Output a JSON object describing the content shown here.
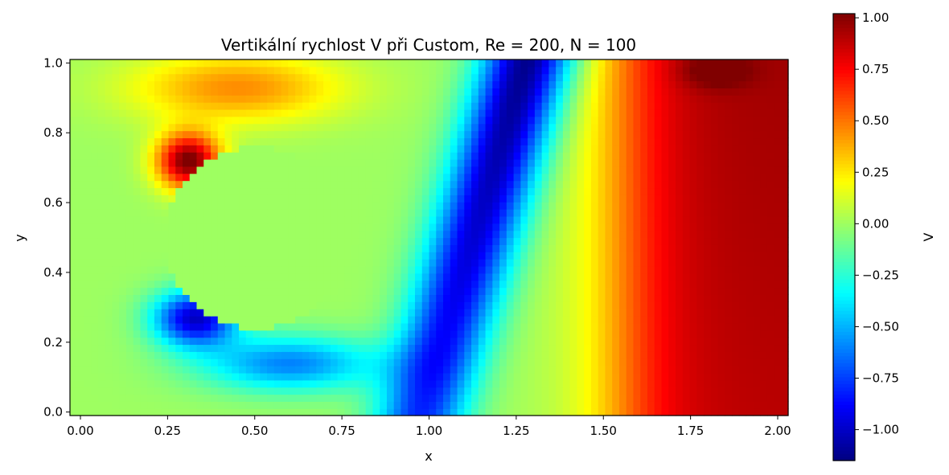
{
  "chart_data": {
    "type": "heatmap",
    "title": "Vertikální rychlost V při Custom, Re = 200, N = 100",
    "xlabel": "x",
    "ylabel": "y",
    "xlim": [
      -0.03,
      2.03
    ],
    "ylim": [
      -0.01,
      1.01
    ],
    "x_ticks": [
      0.0,
      0.25,
      0.5,
      0.75,
      1.0,
      1.25,
      1.5,
      1.75,
      2.0
    ],
    "x_tick_labels": [
      "0.00",
      "0.25",
      "0.50",
      "0.75",
      "1.00",
      "1.25",
      "1.50",
      "1.75",
      "2.00"
    ],
    "y_ticks": [
      0.0,
      0.2,
      0.4,
      0.6,
      0.8,
      1.0
    ],
    "y_tick_labels": [
      "0.0",
      "0.2",
      "0.4",
      "0.6",
      "0.8",
      "1.0"
    ],
    "colormap": "jet",
    "grid": false,
    "colorbar": {
      "label": "V",
      "vmin": -1.15,
      "vmax": 1.02,
      "ticks": [
        1.0,
        0.75,
        0.5,
        0.25,
        0.0,
        -0.25,
        -0.5,
        -0.75,
        -1.0
      ],
      "tick_labels": [
        "1.00",
        "0.75",
        "0.50",
        "0.25",
        "0.00",
        "−0.25",
        "−0.50",
        "−0.75",
        "−1.00"
      ]
    },
    "grid_resolution": {
      "nx": 100,
      "ny": 50
    },
    "obstacle": {
      "shape": "rounded body (V = 0 inside)",
      "x_range": [
        0.25,
        0.77
      ],
      "y_range": [
        0.24,
        0.76
      ],
      "value": 0.0
    },
    "field_features": [
      {
        "region": "above obstacle front",
        "x": 0.32,
        "y": 0.72,
        "V": 1.0
      },
      {
        "region": "below obstacle front",
        "x": 0.33,
        "y": 0.27,
        "V": -1.0
      },
      {
        "region": "wake diagonal band",
        "x_from": 0.95,
        "x_to": 1.35,
        "y_from": 0.0,
        "y_to": 1.0,
        "V": -1.1
      },
      {
        "region": "right side",
        "x": 2.0,
        "y": 0.2,
        "V": 0.95
      },
      {
        "region": "top right",
        "x": 1.82,
        "y": 0.98,
        "V": 0.95
      },
      {
        "region": "left inflow",
        "x": 0.0,
        "y": 0.5,
        "V": 0.0
      }
    ]
  }
}
